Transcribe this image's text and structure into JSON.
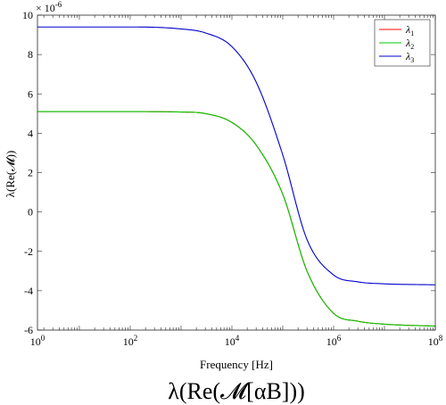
{
  "chart_data": {
    "type": "line",
    "xscale": "log",
    "xlim": [
      1.5,
      100000000
    ],
    "ylim": [
      -6,
      10
    ],
    "y_exponent": "x 10^-6",
    "xlabel": "Frequency [Hz]",
    "ylabel": "λ(Re(𝓜))",
    "caption": "λ(Re(𝓜[αB]))",
    "x_ticks": [
      {
        "value": 1,
        "base": "10",
        "exp": "0"
      },
      {
        "value": 100,
        "base": "10",
        "exp": "2"
      },
      {
        "value": 10000,
        "base": "10",
        "exp": "4"
      },
      {
        "value": 1000000,
        "base": "10",
        "exp": "6"
      },
      {
        "value": 100000000,
        "base": "10",
        "exp": "8"
      }
    ],
    "y_ticks": [
      -6,
      -4,
      -2,
      0,
      2,
      4,
      6,
      8,
      10
    ],
    "grid": false,
    "legend_position": "top-right",
    "x": [
      1.5,
      10,
      100,
      1000,
      3000,
      10000,
      30000,
      100000,
      300000,
      1000000,
      3000000,
      10000000,
      100000000
    ],
    "series": [
      {
        "name": "λ1",
        "sub": "1",
        "color": "#ff0000",
        "values": [
          5.1,
          5.1,
          5.1,
          5.08,
          5.0,
          4.55,
          3.4,
          0.9,
          -3.0,
          -5.15,
          -5.55,
          -5.7,
          -5.8
        ]
      },
      {
        "name": "λ2",
        "sub": "2",
        "color": "#00cc00",
        "values": [
          5.1,
          5.1,
          5.1,
          5.08,
          5.0,
          4.55,
          3.4,
          0.9,
          -3.0,
          -5.15,
          -5.55,
          -5.7,
          -5.8
        ]
      },
      {
        "name": "λ3",
        "sub": "3",
        "color": "#0000cc",
        "values": [
          9.4,
          9.4,
          9.4,
          9.3,
          9.1,
          8.4,
          6.6,
          2.9,
          -1.4,
          -3.2,
          -3.55,
          -3.65,
          -3.7
        ]
      }
    ]
  }
}
